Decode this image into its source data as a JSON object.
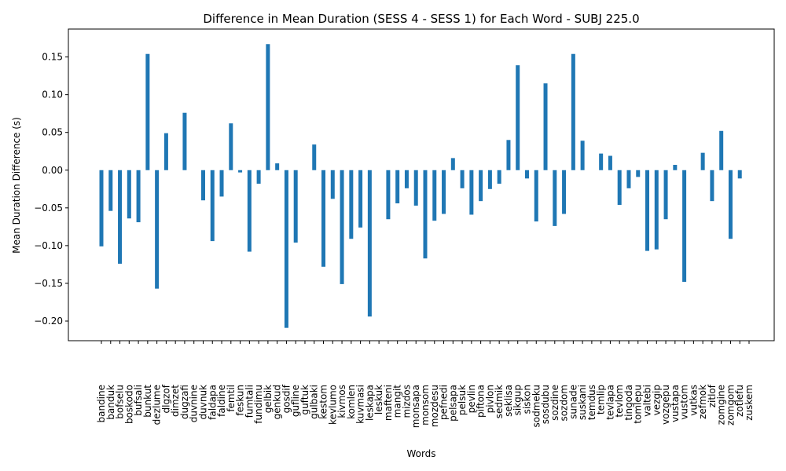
{
  "chart_data": {
    "type": "bar",
    "title": "Difference in Mean Duration (SESS 4 - SESS 1) for Each Word - SUBJ 225.0",
    "xlabel": "Words",
    "ylabel": "Mean Duration Difference (s)",
    "ylim": [
      -0.226,
      0.187
    ],
    "yticks": [
      -0.2,
      -0.15,
      -0.1,
      -0.05,
      0.0,
      0.05,
      0.1,
      0.15
    ],
    "ytick_labels": [
      "−0.20",
      "−0.15",
      "−0.10",
      "−0.05",
      "0.00",
      "0.05",
      "0.10",
      "0.15"
    ],
    "grid": false,
    "bar_color": "#1f77b4",
    "categories": [
      "bandine",
      "banduk",
      "bofselu",
      "boskodo",
      "bufsali",
      "bunkut",
      "dezlume",
      "dlgzof",
      "dimzet",
      "dugzafi",
      "duvnine",
      "duvnuk",
      "faldapa",
      "faldine",
      "femtil",
      "feskun",
      "fumtali",
      "fundimu",
      "gelbik",
      "genkud",
      "gosdif",
      "gufline",
      "guftuk",
      "gulbaki",
      "kestom",
      "kevlumo",
      "kivmos",
      "komlen",
      "kuvmasi",
      "leskapa",
      "leskuk",
      "mafteni",
      "mangit",
      "mizdos",
      "monsapa",
      "monsom",
      "mozdesu",
      "pefnedi",
      "pelsapa",
      "pelsuk",
      "pevlin",
      "piftona",
      "pivlon",
      "sedmik",
      "seklisa",
      "sikgup",
      "siskon",
      "sodmeku",
      "sosdubu",
      "sozdine",
      "sozdom",
      "sunade",
      "suskani",
      "temdus",
      "temlip",
      "tevlapa",
      "tevlom",
      "tingoda",
      "tomlepu",
      "valtebi",
      "vezgip",
      "vozgepu",
      "vustapa",
      "vustom",
      "vutkas",
      "zefmok",
      "zitlof",
      "zomgine",
      "zomgom",
      "zotlefu",
      "zuskem"
    ],
    "values": [
      -0.101,
      -0.054,
      -0.124,
      -0.064,
      -0.069,
      0.154,
      -0.157,
      0.049,
      null,
      0.076,
      null,
      -0.04,
      -0.094,
      -0.035,
      0.062,
      -0.003,
      -0.108,
      -0.018,
      0.167,
      0.009,
      -0.209,
      -0.096,
      null,
      0.034,
      -0.128,
      -0.038,
      -0.151,
      -0.091,
      -0.076,
      -0.194,
      null,
      -0.065,
      -0.044,
      -0.024,
      -0.047,
      -0.117,
      -0.067,
      -0.058,
      0.016,
      -0.024,
      -0.059,
      -0.041,
      -0.025,
      -0.018,
      0.04,
      0.139,
      -0.011,
      -0.068,
      0.115,
      -0.074,
      -0.058,
      0.154,
      0.039,
      null,
      0.022,
      0.019,
      -0.046,
      -0.024,
      -0.009,
      -0.107,
      -0.105,
      -0.065,
      0.007,
      -0.148,
      null,
      0.023,
      -0.041,
      0.052,
      -0.091,
      -0.011,
      null
    ]
  }
}
